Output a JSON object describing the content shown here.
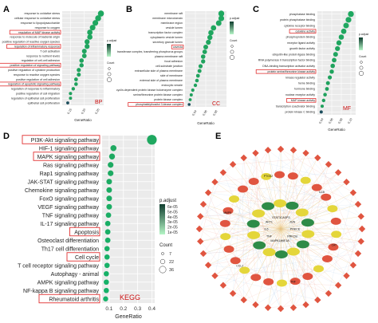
{
  "panels": {
    "a": {
      "letter": "A",
      "tag": "BP"
    },
    "b": {
      "letter": "B",
      "tag": "CC"
    },
    "c": {
      "letter": "C",
      "tag": "MF"
    },
    "d": {
      "letter": "D",
      "tag": "KEGG"
    },
    "e": {
      "letter": "E"
    }
  },
  "colors": {
    "low_p": "#1fa860",
    "high_p": "#b5f5c6",
    "highlight_box": "#e03030",
    "tag": "#cc1111",
    "network_edge": "#e8c47a",
    "node_red": "#e05540",
    "node_yellow": "#e4d63a",
    "node_green": "#2e8b47"
  },
  "chart_data": [
    {
      "type": "scatter",
      "title": "",
      "xlabel": "GeneRatio",
      "ylabel": "",
      "legend": {
        "title_color": "p.adjust",
        "title_size": "Count"
      },
      "categories": [
        "response to oxidative stress",
        "cellular response to oxidative stress",
        "response to lipopolysaccharide",
        "response to oxygen",
        "regulation of MAP kinase activity",
        "response to molecule of bacterial origin",
        "positive regulation of reactive oxygen species",
        "regulation of inflammatory response",
        "T cell activation",
        "response to nutrient levels",
        "regulation of cell-cell adhesion",
        "positive regulation of signaling pathway",
        "positive regulation of cytokine production",
        "response to reactive oxygen species",
        "positive regulation of cell adhesion",
        "regulation of apoptotic signaling pathway",
        "regulation of response to inflammatory",
        "positive regulation of cell migration",
        "regulation of epithelial cell proliferation",
        "epithelial cell proliferation"
      ],
      "highlighted": [
        4,
        7,
        11,
        15
      ],
      "x": [
        0.26,
        0.25,
        0.24,
        0.23,
        0.22,
        0.22,
        0.21,
        0.21,
        0.2,
        0.2,
        0.19,
        0.19,
        0.18,
        0.18,
        0.17,
        0.17,
        0.16,
        0.15,
        0.15,
        0.14
      ],
      "xlim": [
        0.12,
        0.27
      ],
      "xticks": [
        "0.15",
        "0.20",
        "0.25"
      ],
      "tag": "BP"
    },
    {
      "type": "scatter",
      "title": "",
      "xlabel": "GeneRatio",
      "ylabel": "",
      "legend": {
        "title_color": "p.adjust",
        "title_size": "Count"
      },
      "categories": [
        "membrane raft",
        "membrane microdomain",
        "membrane region",
        "vesicle lumen",
        "transcription factor complex",
        "cytoplasmic vesicle lumen",
        "secretory granule lumen",
        "caveola",
        "transferase complex, transferring phosphorus groups",
        "plasma membrane raft",
        "focal adhesion",
        "cell-substrate junction",
        "extracellular side of plasma membrane",
        "side of membrane",
        "external side of plasma membrane",
        "endocytic vesicle",
        "cyclin-dependent protein kinase holoenzyme complex",
        "serine/threonine protein kinase complex",
        "protein kinase complex",
        "phosphatidylinositol 3-kinase complex"
      ],
      "highlighted": [
        7,
        19
      ],
      "x": [
        0.09,
        0.09,
        0.085,
        0.075,
        0.07,
        0.068,
        0.065,
        0.06,
        0.058,
        0.055,
        0.055,
        0.05,
        0.048,
        0.045,
        0.043,
        0.04,
        0.035,
        0.032,
        0.03,
        0.028
      ],
      "xlim": [
        0.02,
        0.1
      ],
      "xticks": [
        "0.04",
        "0.06",
        "0.08"
      ],
      "tag": "CC"
    },
    {
      "type": "scatter",
      "title": "",
      "xlabel": "GeneRatio",
      "ylabel": "",
      "legend": {
        "title_color": "p.adjust",
        "title_size": "Count"
      },
      "categories": [
        "phosphatase binding",
        "protein phosphatase binding",
        "cytokine receptor binding",
        "cytokine activity",
        "phosphoprotein binding",
        "receptor ligand activity",
        "growth factor activity",
        "ubiquitin-like protein ligase binding",
        "RNA polymerase II transcription factor binding",
        "DNA-binding transcription activator activity",
        "protein serine/threonine kinase activity",
        "kinase regulator activity",
        "heme binding",
        "hormone binding",
        "nuclear receptor activity",
        "MAP kinase activity",
        "transcription coactivator binding",
        "protein kinase C binding"
      ],
      "highlighted": [
        3,
        10,
        15
      ],
      "x": [
        0.1,
        0.095,
        0.09,
        0.085,
        0.08,
        0.075,
        0.072,
        0.068,
        0.065,
        0.062,
        0.06,
        0.056,
        0.052,
        0.05,
        0.046,
        0.043,
        0.04,
        0.038
      ],
      "xlim": [
        0.03,
        0.11
      ],
      "xticks": [
        "0.04",
        "0.06",
        "0.08",
        "0.10"
      ],
      "tag": "MF"
    },
    {
      "type": "scatter",
      "title": "",
      "xlabel": "GeneRatio",
      "ylabel": "",
      "legend": {
        "title_color": "p.adjust",
        "title_size": "Count",
        "color_ticks": [
          "6e-05",
          "5e-05",
          "4e-05",
          "3e-05",
          "2e-05",
          "1e-05"
        ],
        "size_ticks": [
          "7",
          "22",
          "36"
        ]
      },
      "categories": [
        "PI3K-Akt signaling pathway",
        "HIF-1 signaling pathway",
        "MAPK signaling pathway",
        "Ras signaling pathway",
        "Rap1 signaling pathway",
        "JAK-STAT signaling pathway",
        "Chemokine signaling pathway",
        "FoxO signaling pathway",
        "VEGF signaling pathway",
        "TNF signaling pathway",
        "IL-17 signaling pathway",
        "Apoptosis",
        "Osteoclast differentiation",
        "Th17 cell differentiation",
        "Cell cycle",
        "T cell receptor signaling pathway",
        "Autophagy - animal",
        "AMPK signaling pathway",
        "NF-kappa B signaling pathway",
        "Rheumatoid arthritis"
      ],
      "highlighted": [
        0,
        2,
        11,
        14,
        19
      ],
      "x": [
        0.4,
        0.13,
        0.12,
        0.11,
        0.11,
        0.1,
        0.1,
        0.1,
        0.1,
        0.095,
        0.09,
        0.09,
        0.09,
        0.085,
        0.085,
        0.085,
        0.08,
        0.08,
        0.08,
        0.075
      ],
      "counts": [
        36,
        13,
        12,
        11,
        11,
        10,
        10,
        10,
        10,
        9,
        9,
        9,
        9,
        8,
        8,
        8,
        8,
        8,
        8,
        7
      ],
      "xlim": [
        0.05,
        0.42
      ],
      "xticks": [
        "0.1",
        "0.2",
        "0.3",
        "0.4"
      ],
      "tag": "KEGG"
    }
  ],
  "network": {
    "center_labels": [
      "PRKCE",
      "PRKCB",
      "HIF1A",
      "MAPK14",
      "TNF",
      "IL6",
      "AKT1",
      "STAT3",
      "CASP3",
      "JUN"
    ],
    "outer_labels": [
      "CAT",
      "TNF",
      "CCL2",
      "MMP9",
      "PTGS2",
      "IL1B"
    ]
  }
}
